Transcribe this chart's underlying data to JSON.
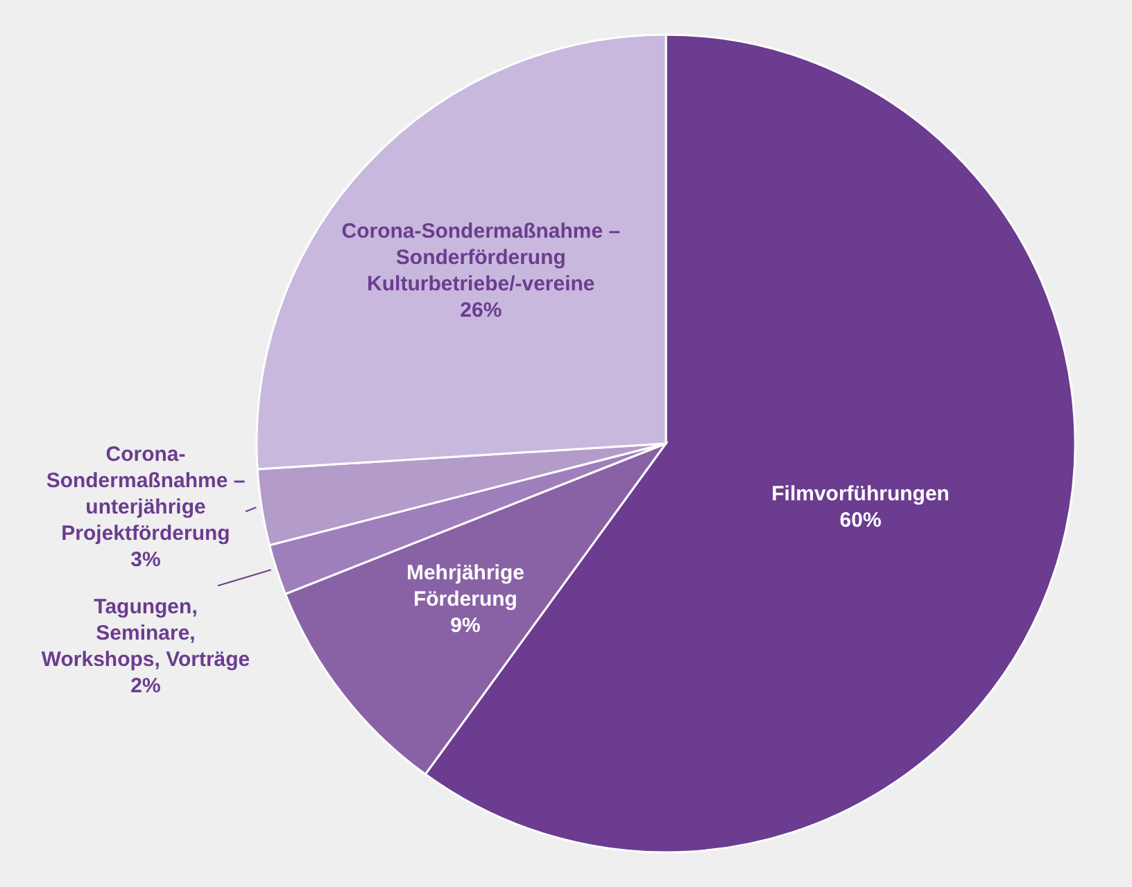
{
  "chart_data": {
    "type": "pie",
    "categories": [
      "Filmvorführungen",
      "Mehrjährige\nFörderung",
      "Tagungen,\nSeminare,\nWorkshops, Vorträge",
      "Corona-\nSondermaßnahme –\nunterjährige\nProjektförderung",
      "Corona-Sondermaßnahme –\nSonderförderung\nKulturbetriebe/-vereine"
    ],
    "values": [
      60,
      9,
      2,
      3,
      26
    ],
    "value_labels": [
      "60%",
      "9%",
      "2%",
      "3%",
      "26%"
    ],
    "colors": [
      "#6b3c8f",
      "#8962a6",
      "#9e7fbb",
      "#b39cc9",
      "#c8b8dd"
    ]
  }
}
